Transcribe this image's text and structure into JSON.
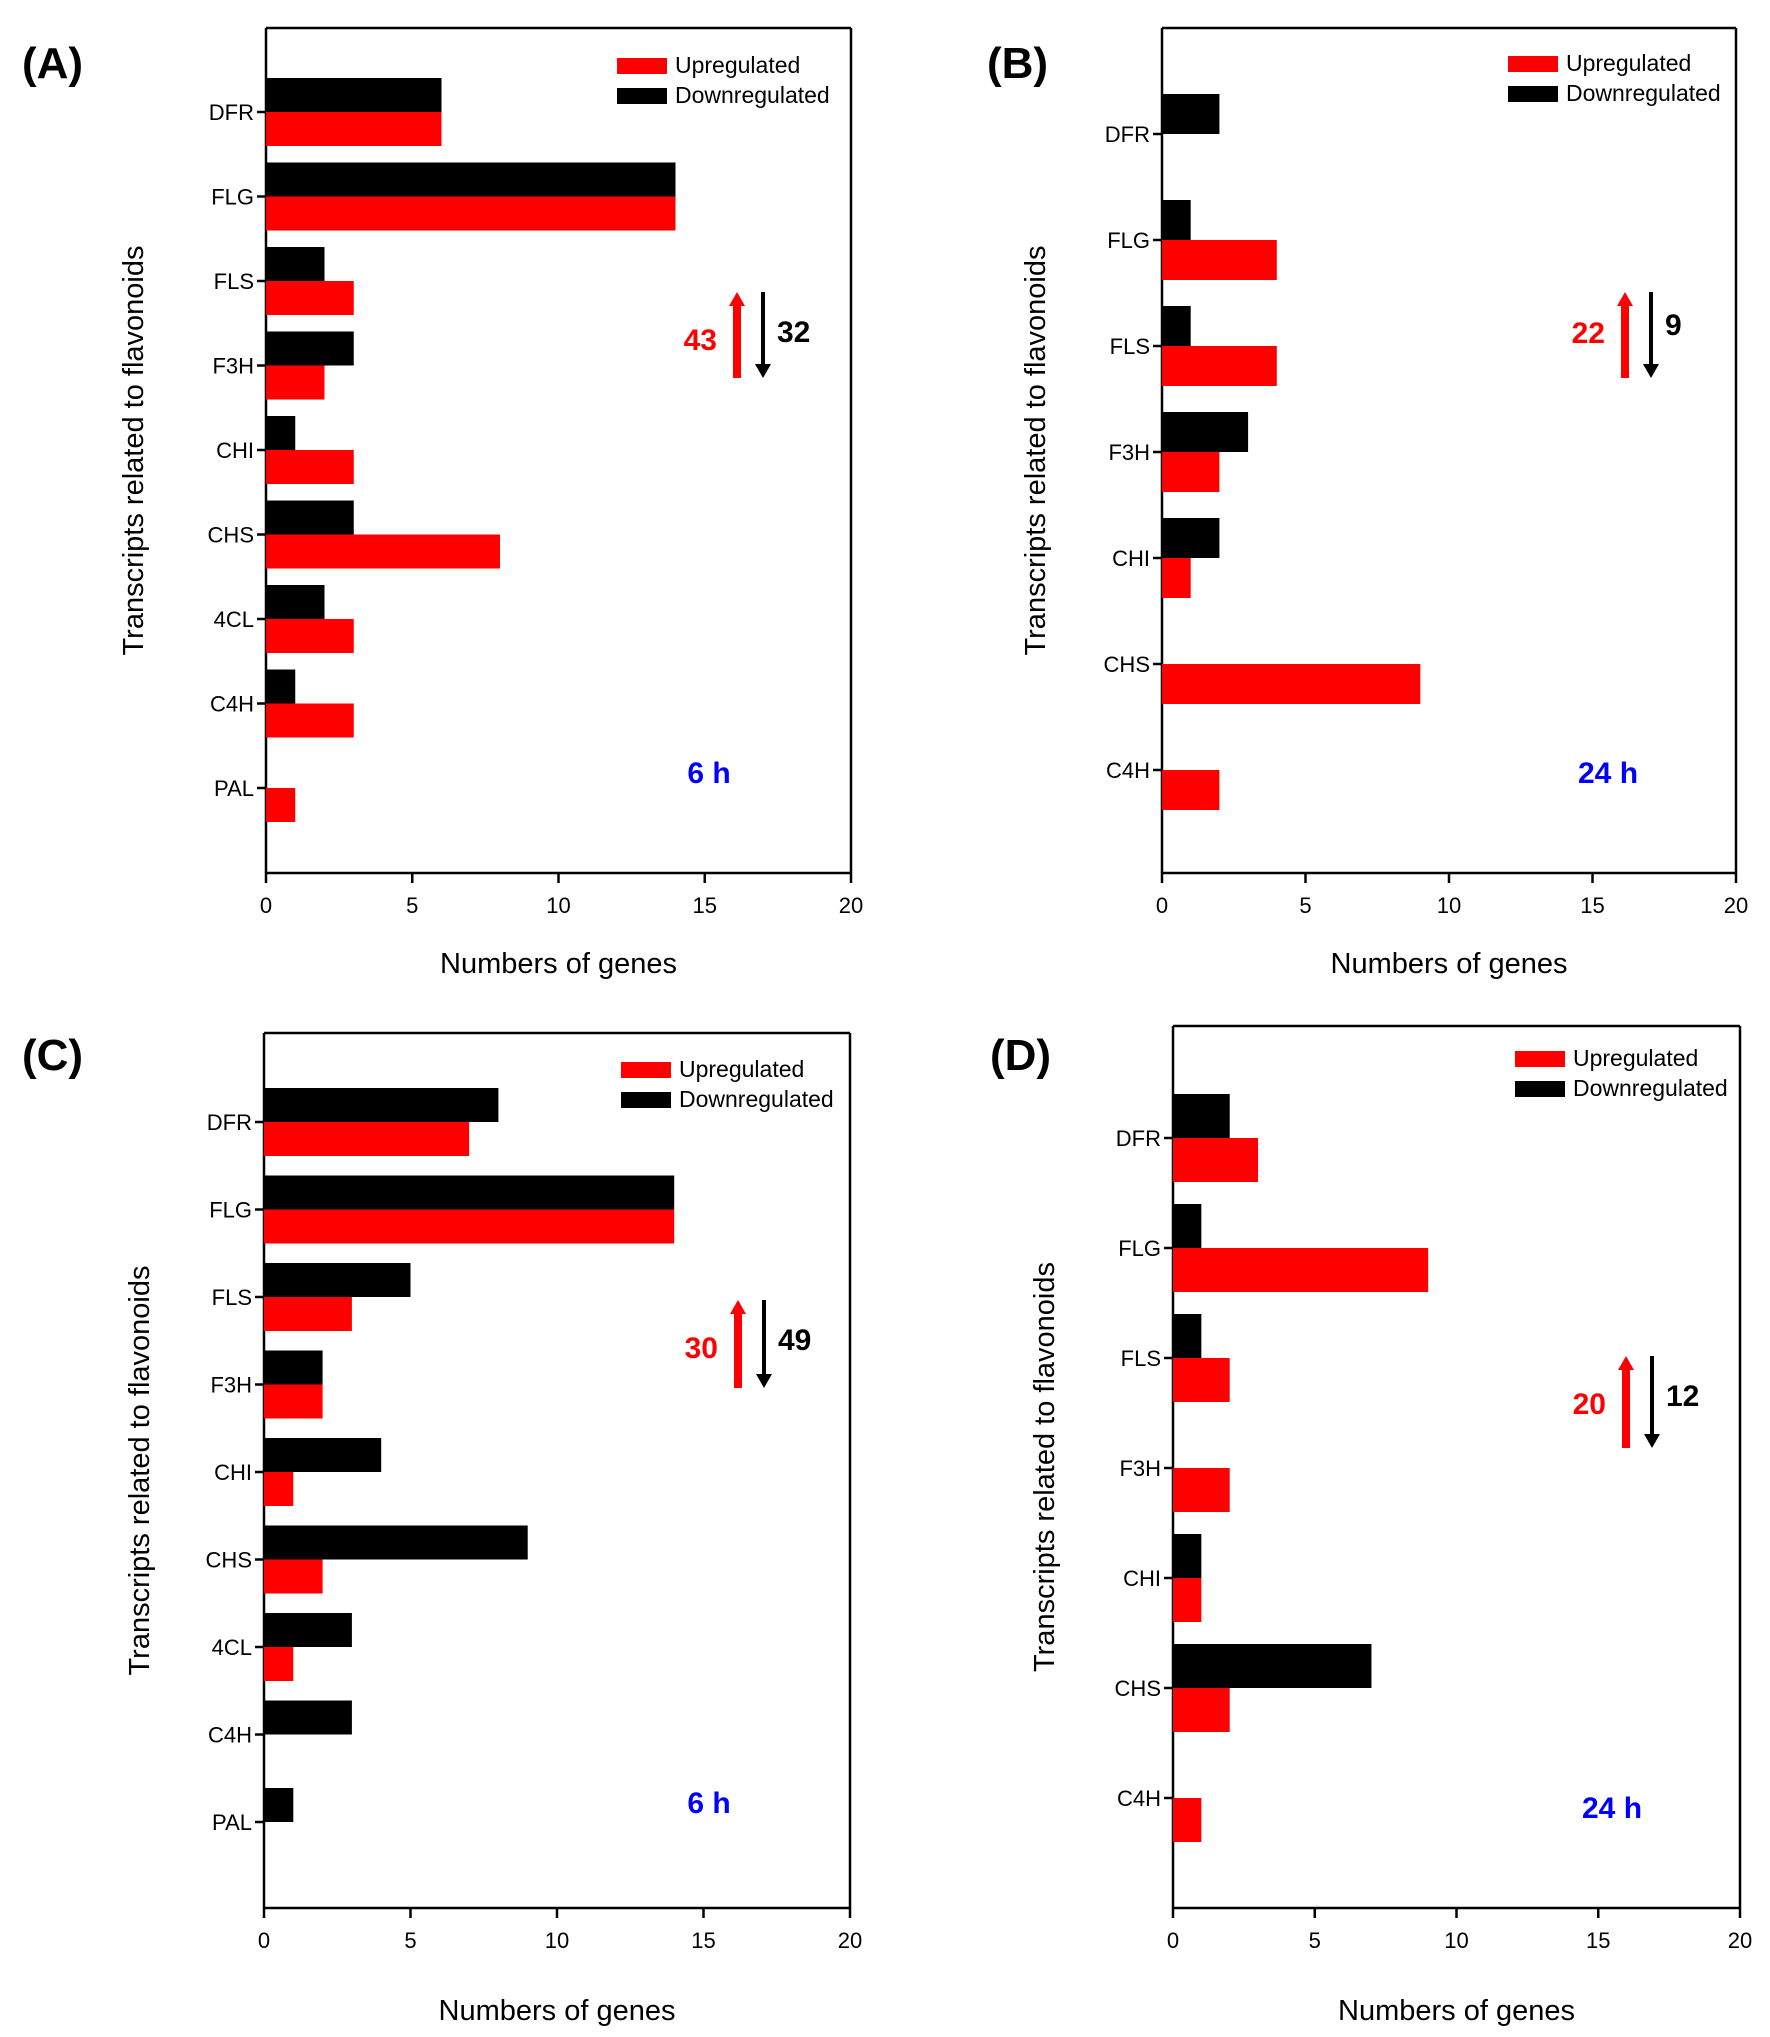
{
  "colors": {
    "up": "#ff0000",
    "down": "#000000",
    "time": "#0000ff"
  },
  "chart_data": [
    {
      "id": "A",
      "type": "bar",
      "orientation": "horizontal",
      "panel_label": "(A)",
      "categories": [
        "DFR",
        "FLG",
        "FLS",
        "F3H",
        "CHI",
        "CHS",
        "4CL",
        "C4H",
        "PAL"
      ],
      "series": [
        {
          "name": "Upregulated",
          "color": "#ff0000",
          "values": [
            6,
            14,
            3,
            2,
            3,
            8,
            3,
            3,
            1
          ]
        },
        {
          "name": "Downregulated",
          "color": "#000000",
          "values": [
            6,
            14,
            2,
            3,
            1,
            3,
            2,
            1,
            0
          ]
        }
      ],
      "xlabel": "Numbers of genes",
      "ylabel": "Transcripts related to flavonoids",
      "xlim": [
        0,
        20
      ],
      "xticks": [
        "0",
        "5",
        "10",
        "15",
        "20"
      ],
      "legend": [
        "Upregulated",
        "Downregulated"
      ],
      "legend_position": "top-right",
      "annotations": {
        "up_count": "43",
        "down_count": "32",
        "time": "6 h"
      }
    },
    {
      "id": "B",
      "type": "bar",
      "orientation": "horizontal",
      "panel_label": "(B)",
      "categories": [
        "DFR",
        "FLG",
        "FLS",
        "F3H",
        "CHI",
        "CHS",
        "C4H"
      ],
      "series": [
        {
          "name": "Upregulated",
          "color": "#ff0000",
          "values": [
            0,
            4,
            4,
            2,
            1,
            9,
            2
          ]
        },
        {
          "name": "Downregulated",
          "color": "#000000",
          "values": [
            2,
            1,
            1,
            3,
            2,
            0,
            0
          ]
        }
      ],
      "xlabel": "Numbers of genes",
      "ylabel": "Transcripts related to flavonoids",
      "xlim": [
        0,
        20
      ],
      "xticks": [
        "0",
        "5",
        "10",
        "15",
        "20"
      ],
      "legend": [
        "Upregulated",
        "Downregulated"
      ],
      "legend_position": "top-right",
      "annotations": {
        "up_count": "22",
        "down_count": "9",
        "time": "24 h"
      }
    },
    {
      "id": "C",
      "type": "bar",
      "orientation": "horizontal",
      "panel_label": "(C)",
      "categories": [
        "DFR",
        "FLG",
        "FLS",
        "F3H",
        "CHI",
        "CHS",
        "4CL",
        "C4H",
        "PAL"
      ],
      "series": [
        {
          "name": "Upregulated",
          "color": "#ff0000",
          "values": [
            7,
            14,
            3,
            2,
            1,
            2,
            1,
            0,
            0
          ]
        },
        {
          "name": "Downregulated",
          "color": "#000000",
          "values": [
            8,
            14,
            5,
            2,
            4,
            9,
            3,
            3,
            1
          ]
        }
      ],
      "xlabel": "Numbers of genes",
      "ylabel": "Transcripts related to flavonoids",
      "xlim": [
        0,
        20
      ],
      "xticks": [
        "0",
        "5",
        "10",
        "15",
        "20"
      ],
      "legend": [
        "Upregulated",
        "Downregulated"
      ],
      "legend_position": "top-right",
      "annotations": {
        "up_count": "30",
        "down_count": "49",
        "time": "6 h"
      }
    },
    {
      "id": "D",
      "type": "bar",
      "orientation": "horizontal",
      "panel_label": "(D)",
      "categories": [
        "DFR",
        "FLG",
        "FLS",
        "F3H",
        "CHI",
        "CHS",
        "C4H"
      ],
      "series": [
        {
          "name": "Upregulated",
          "color": "#ff0000",
          "values": [
            3,
            9,
            2,
            2,
            1,
            2,
            1
          ]
        },
        {
          "name": "Downregulated",
          "color": "#000000",
          "values": [
            2,
            1,
            1,
            0,
            1,
            7,
            0
          ]
        }
      ],
      "xlabel": "Numbers of genes",
      "ylabel": "Transcripts related to flavonoids",
      "xlim": [
        0,
        20
      ],
      "xticks": [
        "0",
        "5",
        "10",
        "15",
        "20"
      ],
      "legend": [
        "Upregulated",
        "Downregulated"
      ],
      "legend_position": "top-right",
      "annotations": {
        "up_count": "20",
        "down_count": "12",
        "time": "24 h"
      }
    }
  ]
}
